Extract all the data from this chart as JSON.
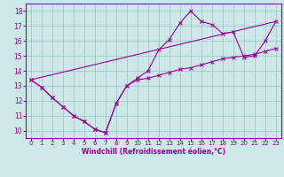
{
  "bg_color": "#cce8e8",
  "grid_color": "#99cccc",
  "line_color": "#990099",
  "xlabel": "Windchill (Refroidissement éolien,°C)",
  "xlabel_color": "#990099",
  "xlim": [
    -0.5,
    23.5
  ],
  "ylim": [
    9.5,
    18.5
  ],
  "yticks": [
    10,
    11,
    12,
    13,
    14,
    15,
    16,
    17,
    18
  ],
  "xticks": [
    0,
    1,
    2,
    3,
    4,
    5,
    6,
    7,
    8,
    9,
    10,
    11,
    12,
    13,
    14,
    15,
    16,
    17,
    18,
    19,
    20,
    21,
    22,
    23
  ],
  "series1_x": [
    0,
    1,
    2,
    3,
    4,
    5,
    6,
    7,
    8,
    9,
    10,
    11,
    12,
    13,
    14,
    15,
    16,
    17,
    18,
    19,
    20,
    21,
    22,
    23
  ],
  "series1_y": [
    13.4,
    12.9,
    12.2,
    11.6,
    11.0,
    10.6,
    10.1,
    9.85,
    11.8,
    13.0,
    13.4,
    13.5,
    13.7,
    13.9,
    14.1,
    14.2,
    14.4,
    14.6,
    14.8,
    14.9,
    15.0,
    15.1,
    15.3,
    15.5
  ],
  "series2_x": [
    0,
    1,
    2,
    3,
    4,
    5,
    6,
    7,
    8,
    9,
    10,
    11,
    12,
    13,
    14,
    15,
    16,
    17,
    18,
    19,
    20,
    21,
    22,
    23
  ],
  "series2_y": [
    13.4,
    12.9,
    12.2,
    11.6,
    11.0,
    10.6,
    10.1,
    9.85,
    11.8,
    13.0,
    13.5,
    14.0,
    15.4,
    16.1,
    17.2,
    18.0,
    17.3,
    17.1,
    16.5,
    16.6,
    14.9,
    15.0,
    16.0,
    17.3
  ],
  "series3_x": [
    0,
    23
  ],
  "series3_y": [
    13.4,
    17.3
  ],
  "tick_fontsize": 5.0,
  "xlabel_fontsize": 5.5,
  "marker_size": 2.5,
  "line_width": 0.8
}
